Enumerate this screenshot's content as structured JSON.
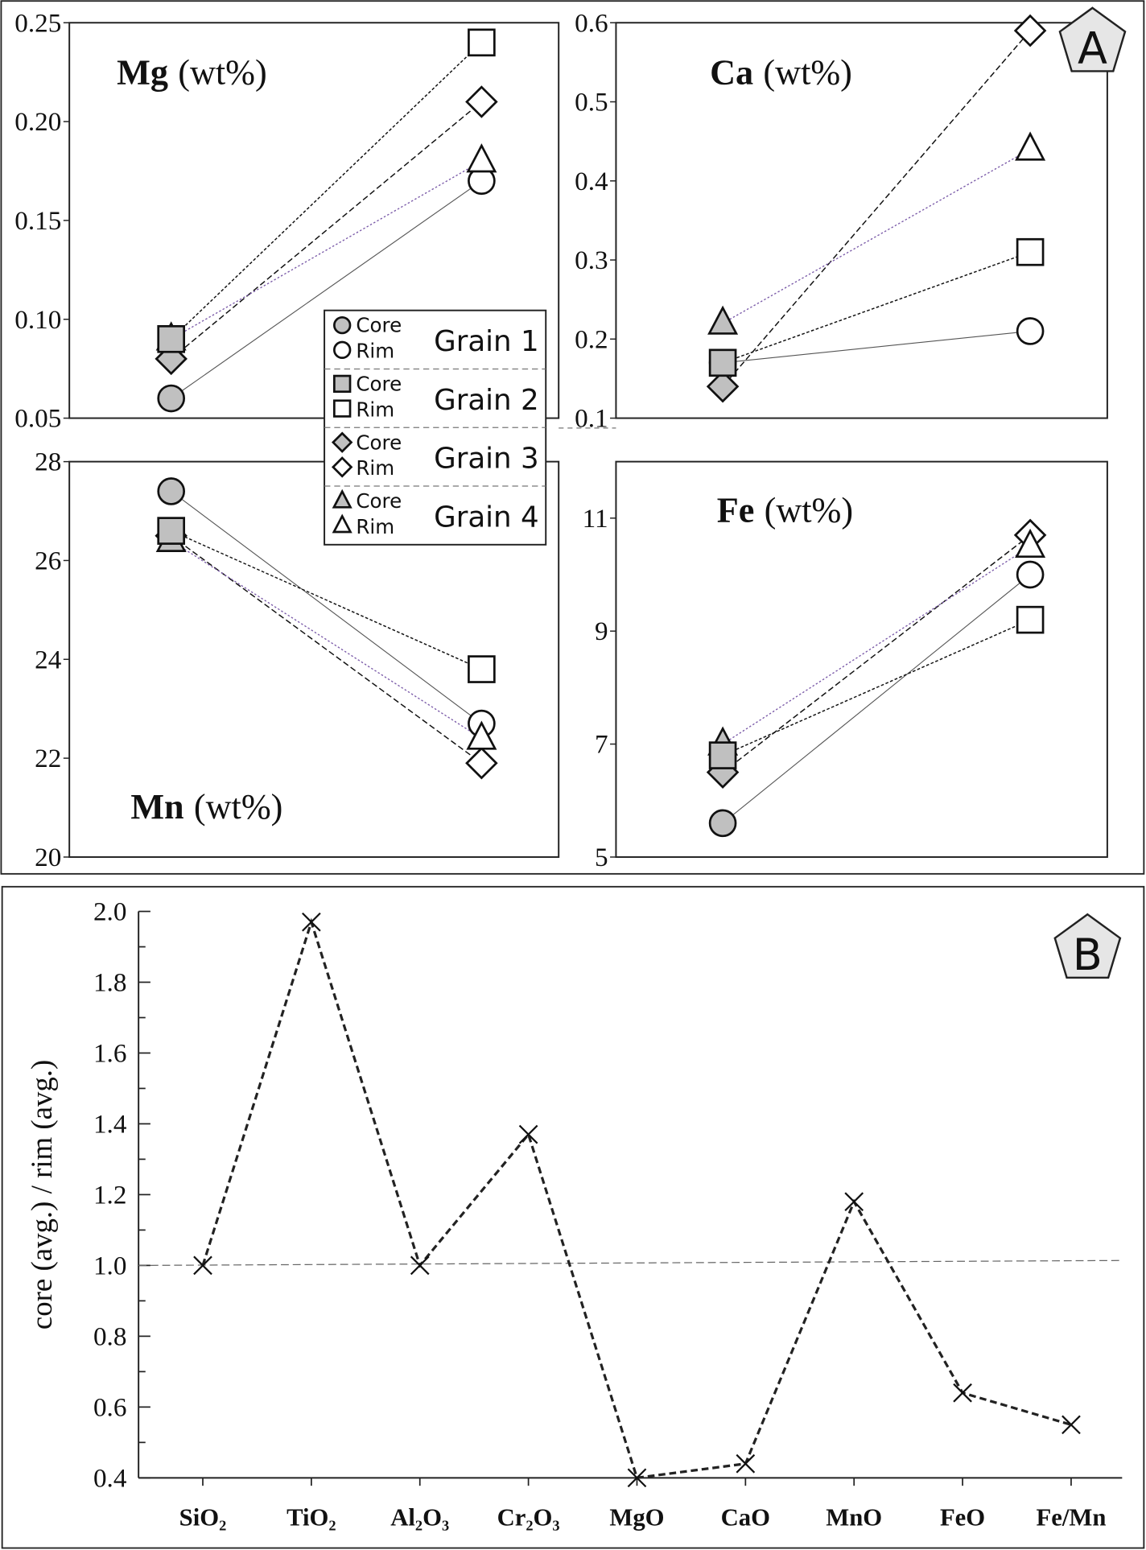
{
  "chart_data": [
    {
      "type": "scatter",
      "panel": "A",
      "title": "Mg",
      "unit": "(wt%)",
      "ylim": [
        0.05,
        0.25
      ],
      "yticks": [
        "0.05",
        "0.10",
        "0.15",
        "0.20",
        "0.25"
      ],
      "ytick_values": [
        0.05,
        0.1,
        0.15,
        0.2,
        0.25
      ],
      "x": [
        "Core",
        "Rim"
      ],
      "series": [
        {
          "name": "Grain 1",
          "values": [
            0.06,
            0.17
          ]
        },
        {
          "name": "Grain 2",
          "values": [
            0.09,
            0.24
          ]
        },
        {
          "name": "Grain 3",
          "values": [
            0.08,
            0.21
          ]
        },
        {
          "name": "Grain 4",
          "values": [
            0.09,
            0.18
          ]
        }
      ]
    },
    {
      "type": "scatter",
      "panel": "A",
      "title": "Ca",
      "unit": "(wt%)",
      "ylim": [
        0.1,
        0.6
      ],
      "yticks": [
        "0.1",
        "0.2",
        "0.3",
        "0.4",
        "0.5",
        "0.6"
      ],
      "ytick_values": [
        0.1,
        0.2,
        0.3,
        0.4,
        0.5,
        0.6
      ],
      "x": [
        "Core",
        "Rim"
      ],
      "series": [
        {
          "name": "Grain 1",
          "values": [
            0.17,
            0.21
          ]
        },
        {
          "name": "Grain 2",
          "values": [
            0.17,
            0.31
          ]
        },
        {
          "name": "Grain 3",
          "values": [
            0.14,
            0.59
          ]
        },
        {
          "name": "Grain 4",
          "values": [
            0.22,
            0.44
          ]
        }
      ]
    },
    {
      "type": "scatter",
      "panel": "A",
      "title": "Mn",
      "unit": "(wt%)",
      "ylim": [
        20,
        28
      ],
      "yticks": [
        "20",
        "22",
        "24",
        "26",
        "28"
      ],
      "ytick_values": [
        20,
        22,
        24,
        26,
        28
      ],
      "x": [
        "Core",
        "Rim"
      ],
      "series": [
        {
          "name": "Grain 1",
          "values": [
            27.4,
            22.7
          ]
        },
        {
          "name": "Grain 2",
          "values": [
            26.6,
            23.8
          ]
        },
        {
          "name": "Grain 3",
          "values": [
            26.5,
            21.9
          ]
        },
        {
          "name": "Grain 4",
          "values": [
            26.4,
            22.4
          ]
        }
      ]
    },
    {
      "type": "scatter",
      "panel": "A",
      "title": "Fe",
      "unit": "(wt%)",
      "ylim": [
        5,
        12
      ],
      "yticks": [
        "5",
        "7",
        "9",
        "11"
      ],
      "ytick_values": [
        5,
        7,
        9,
        11
      ],
      "x": [
        "Core",
        "Rim"
      ],
      "series": [
        {
          "name": "Grain 1",
          "values": [
            5.6,
            10.0
          ]
        },
        {
          "name": "Grain 2",
          "values": [
            6.8,
            9.2
          ]
        },
        {
          "name": "Grain 3",
          "values": [
            6.5,
            10.7
          ]
        },
        {
          "name": "Grain 4",
          "values": [
            7.0,
            10.5
          ]
        }
      ]
    },
    {
      "type": "line",
      "panel": "B",
      "ylabel": "core (avg.) / rim (avg.)",
      "ylim": [
        0.4,
        2.0
      ],
      "yticks": [
        "0.4",
        "0.6",
        "0.8",
        "1.0",
        "1.2",
        "1.4",
        "1.6",
        "1.8",
        "2.0"
      ],
      "ytick_values": [
        0.4,
        0.6,
        0.8,
        1.0,
        1.2,
        1.4,
        1.6,
        1.8,
        2.0
      ],
      "categories": [
        "SiO₂",
        "TiO₂",
        "Al₂O₃",
        "Cr₂O₃",
        "MgO",
        "CaO",
        "MnO",
        "FeO",
        "Fe/Mn"
      ],
      "values": [
        1.0,
        1.97,
        1.0,
        1.37,
        0.4,
        0.44,
        1.18,
        0.64,
        0.55
      ],
      "reference_line": 1.0
    }
  ],
  "legend": {
    "core": "Core",
    "rim": "Rim",
    "grains": [
      "Grain 1",
      "Grain 2",
      "Grain 3",
      "Grain 4"
    ]
  },
  "panel_labels": [
    "A",
    "B"
  ],
  "colors": {
    "core_fill": "#c0c0c0",
    "grain4_line": "#7a5aa8",
    "grain1_line": "#555555"
  }
}
